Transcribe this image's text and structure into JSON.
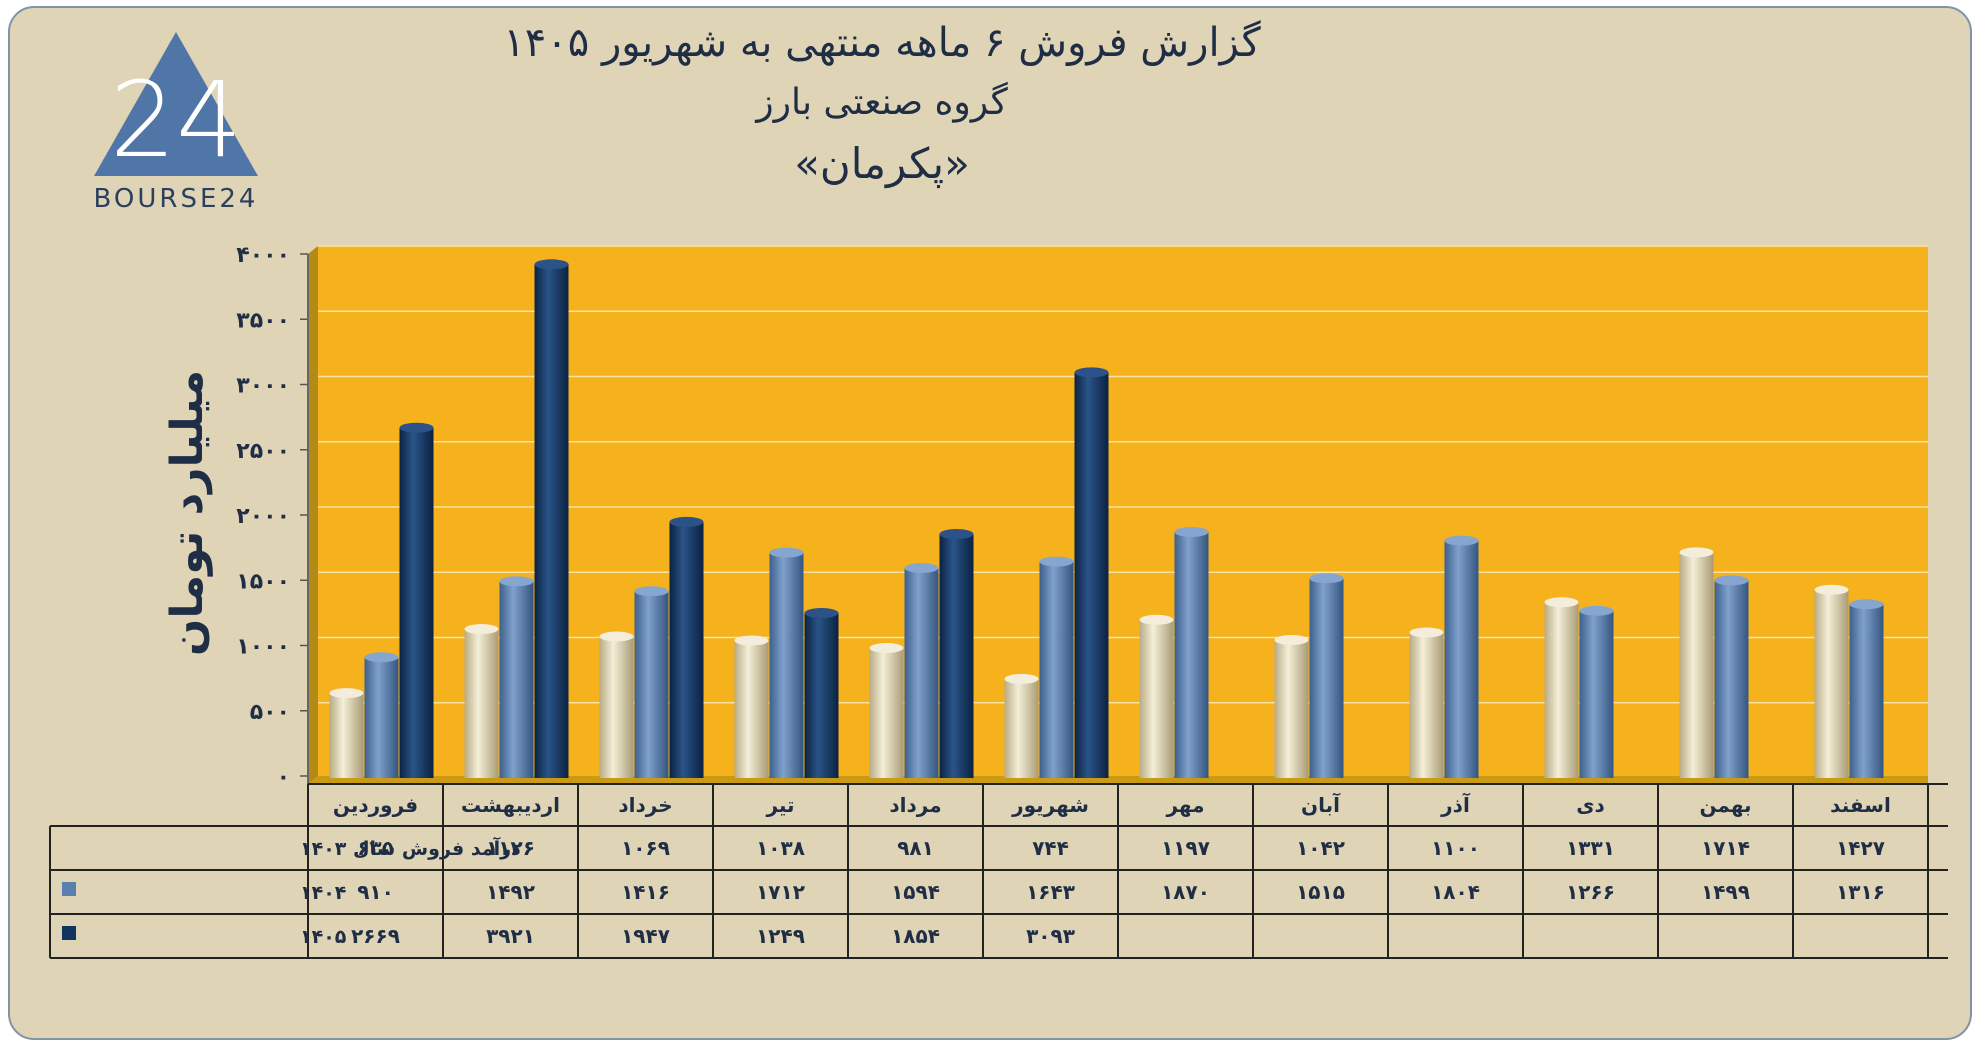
{
  "title": {
    "line1": "گزارش  فروش ۶ ماهه منتهی به شهریور ۱۴۰۵",
    "line2": "گروه صنعتی بارز",
    "line3": "«پکرمان»"
  },
  "logo": {
    "text": "BOURSE24",
    "mark": "24"
  },
  "colors": {
    "background": "#dfd4b6",
    "plot": "#f5b21d",
    "series_1403": "#e6dcbf",
    "series_1404": "#5b7fae",
    "series_1405": "#12355f",
    "text": "#1f2d45"
  },
  "chart_data": {
    "type": "bar",
    "ylabel": "میلیارد تومان",
    "ylim": [
      0,
      4000
    ],
    "yticks": [
      "۰",
      "۵۰۰",
      "۱۰۰۰",
      "۱۵۰۰",
      "۲۰۰۰",
      "۲۵۰۰",
      "۳۰۰۰",
      "۳۵۰۰",
      "۴۰۰۰"
    ],
    "ytick_values": [
      0,
      500,
      1000,
      1500,
      2000,
      2500,
      3000,
      3500,
      4000
    ],
    "grid": true,
    "categories": [
      "فروردین",
      "اردیبهشت",
      "خرداد",
      "تیر",
      "مرداد",
      "شهریور",
      "مهر",
      "آبان",
      "آذر",
      "دی",
      "بهمن",
      "اسفند"
    ],
    "series": [
      {
        "name": "درآمد فروش سال ۱۴۰۳",
        "values": [
          635,
          1126,
          1069,
          1038,
          981,
          744,
          1197,
          1042,
          1100,
          1331,
          1714,
          1427
        ],
        "labels": [
          "۶۳۵",
          "۱۱۲۶",
          "۱۰۶۹",
          "۱۰۳۸",
          "۹۸۱",
          "۷۴۴",
          "۱۱۹۷",
          "۱۰۴۲",
          "۱۱۰۰",
          "۱۳۳۱",
          "۱۷۱۴",
          "۱۴۲۷"
        ]
      },
      {
        "name": "۱۴۰۴",
        "values": [
          910,
          1492,
          1416,
          1712,
          1594,
          1643,
          1870,
          1515,
          1804,
          1266,
          1499,
          1316
        ],
        "labels": [
          "۹۱۰",
          "۱۴۹۲",
          "۱۴۱۶",
          "۱۷۱۲",
          "۱۵۹۴",
          "۱۶۴۳",
          "۱۸۷۰",
          "۱۵۱۵",
          "۱۸۰۴",
          "۱۲۶۶",
          "۱۴۹۹",
          "۱۳۱۶"
        ]
      },
      {
        "name": "۱۴۰۵",
        "values": [
          2669,
          3921,
          1947,
          1249,
          1854,
          3093,
          null,
          null,
          null,
          null,
          null,
          null
        ],
        "labels": [
          "۲۶۶۹",
          "۳۹۲۱",
          "۱۹۴۷",
          "۱۲۴۹",
          "۱۸۵۴",
          "۳۰۹۳",
          "",
          "",
          "",
          "",
          "",
          ""
        ]
      }
    ]
  }
}
